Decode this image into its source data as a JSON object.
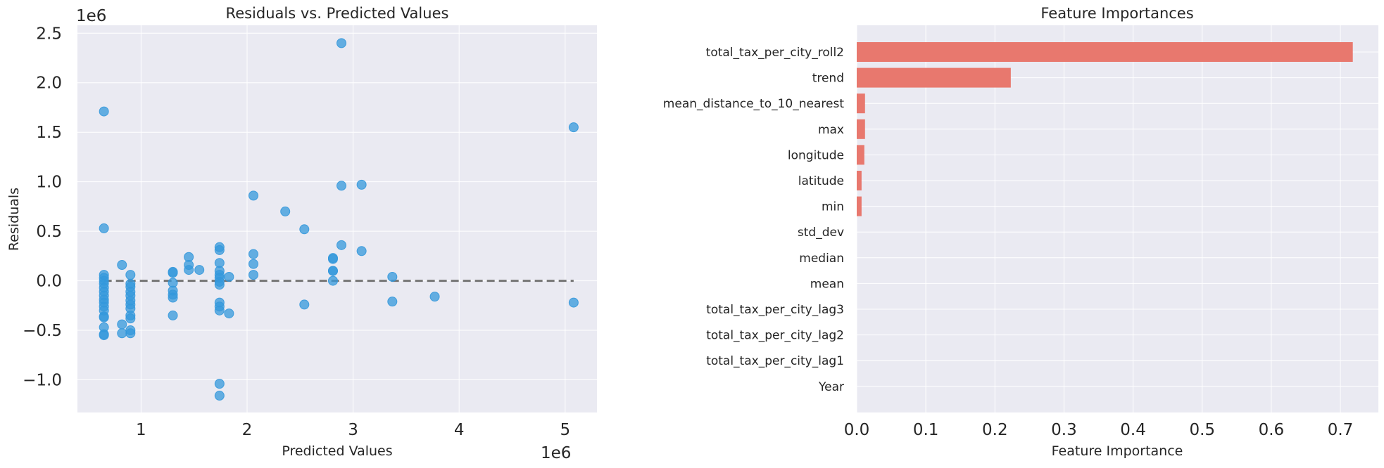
{
  "chart_data": [
    {
      "type": "scatter",
      "title": "Residuals vs. Predicted Values",
      "xlabel": "Predicted Values",
      "ylabel": "Residuals",
      "x_offset_label": "1e6",
      "y_offset_label": "1e6",
      "xlim": [
        0.4,
        5.3
      ],
      "ylim": [
        -1.33,
        2.58
      ],
      "xticks": [
        1,
        2,
        3,
        4,
        5
      ],
      "yticks": [
        -1.0,
        -0.5,
        0.0,
        0.5,
        1.0,
        1.5,
        2.0,
        2.5
      ],
      "xtick_labels": [
        "1",
        "2",
        "3",
        "4",
        "5"
      ],
      "ytick_labels": [
        "−1.0",
        "−0.5",
        "0.0",
        "0.5",
        "1.0",
        "1.5",
        "2.0",
        "2.5"
      ],
      "grid": true,
      "reference_line": {
        "y": 0.0,
        "x_from": 0.65,
        "x_to": 5.08,
        "style": "dashed",
        "color": "#757575"
      },
      "point_color": "#3498db",
      "points": [
        [
          0.65,
          1.71
        ],
        [
          0.65,
          0.53
        ],
        [
          0.65,
          0.06
        ],
        [
          0.65,
          0.03
        ],
        [
          0.65,
          0.0
        ],
        [
          0.65,
          -0.03
        ],
        [
          0.65,
          -0.07
        ],
        [
          0.65,
          -0.11
        ],
        [
          0.65,
          -0.15
        ],
        [
          0.65,
          -0.19
        ],
        [
          0.65,
          -0.22
        ],
        [
          0.65,
          -0.26
        ],
        [
          0.65,
          -0.3
        ],
        [
          0.65,
          -0.36
        ],
        [
          0.65,
          -0.37
        ],
        [
          0.65,
          -0.47
        ],
        [
          0.65,
          -0.55
        ],
        [
          0.65,
          -0.54
        ],
        [
          0.82,
          0.16
        ],
        [
          0.82,
          -0.44
        ],
        [
          0.82,
          -0.53
        ],
        [
          0.9,
          0.06
        ],
        [
          0.9,
          -0.03
        ],
        [
          0.9,
          -0.06
        ],
        [
          0.9,
          -0.11
        ],
        [
          0.9,
          -0.15
        ],
        [
          0.9,
          -0.2
        ],
        [
          0.9,
          -0.24
        ],
        [
          0.9,
          -0.28
        ],
        [
          0.9,
          -0.35
        ],
        [
          0.9,
          -0.38
        ],
        [
          0.9,
          -0.5
        ],
        [
          0.9,
          -0.53
        ],
        [
          1.3,
          0.09
        ],
        [
          1.3,
          0.08
        ],
        [
          1.3,
          -0.02
        ],
        [
          1.3,
          -0.1
        ],
        [
          1.3,
          -0.14
        ],
        [
          1.3,
          -0.17
        ],
        [
          1.3,
          -0.35
        ],
        [
          1.45,
          0.24
        ],
        [
          1.45,
          0.16
        ],
        [
          1.45,
          0.11
        ],
        [
          1.55,
          0.11
        ],
        [
          1.74,
          0.34
        ],
        [
          1.74,
          0.31
        ],
        [
          1.74,
          0.18
        ],
        [
          1.74,
          0.1
        ],
        [
          1.74,
          0.06
        ],
        [
          1.74,
          0.03
        ],
        [
          1.74,
          -0.01
        ],
        [
          1.74,
          -0.04
        ],
        [
          1.74,
          -0.22
        ],
        [
          1.74,
          -0.26
        ],
        [
          1.74,
          -0.3
        ],
        [
          1.74,
          -1.04
        ],
        [
          1.74,
          -1.16
        ],
        [
          1.83,
          0.04
        ],
        [
          1.83,
          -0.33
        ],
        [
          2.06,
          0.86
        ],
        [
          2.06,
          0.27
        ],
        [
          2.06,
          0.17
        ],
        [
          2.06,
          0.06
        ],
        [
          2.36,
          0.7
        ],
        [
          2.54,
          0.52
        ],
        [
          2.54,
          -0.24
        ],
        [
          2.81,
          0.23
        ],
        [
          2.81,
          0.22
        ],
        [
          2.81,
          0.1
        ],
        [
          2.81,
          0.1
        ],
        [
          2.81,
          0.0
        ],
        [
          2.89,
          2.4
        ],
        [
          2.89,
          0.96
        ],
        [
          2.89,
          0.36
        ],
        [
          3.08,
          0.97
        ],
        [
          3.08,
          0.3
        ],
        [
          3.37,
          0.04
        ],
        [
          3.37,
          -0.21
        ],
        [
          3.77,
          -0.16
        ],
        [
          5.08,
          1.55
        ],
        [
          5.08,
          -0.22
        ]
      ]
    },
    {
      "type": "bar",
      "orientation": "horizontal",
      "title": "Feature Importances",
      "xlabel": "Feature Importance",
      "xlim": [
        0,
        0.755
      ],
      "xticks": [
        0.0,
        0.1,
        0.2,
        0.3,
        0.4,
        0.5,
        0.6,
        0.7
      ],
      "xtick_labels": [
        "0.0",
        "0.1",
        "0.2",
        "0.3",
        "0.4",
        "0.5",
        "0.6",
        "0.7"
      ],
      "grid": true,
      "bar_color": "#e8786e",
      "categories": [
        "total_tax_per_city_roll2",
        "trend",
        "mean_distance_to_10_nearest",
        "max",
        "longitude",
        "latitude",
        "min",
        "std_dev",
        "median",
        "mean",
        "total_tax_per_city_lag3",
        "total_tax_per_city_lag2",
        "total_tax_per_city_lag1",
        "Year"
      ],
      "values": [
        0.718,
        0.223,
        0.012,
        0.012,
        0.011,
        0.007,
        0.007,
        0,
        0,
        0,
        0,
        0,
        0,
        0
      ]
    }
  ]
}
